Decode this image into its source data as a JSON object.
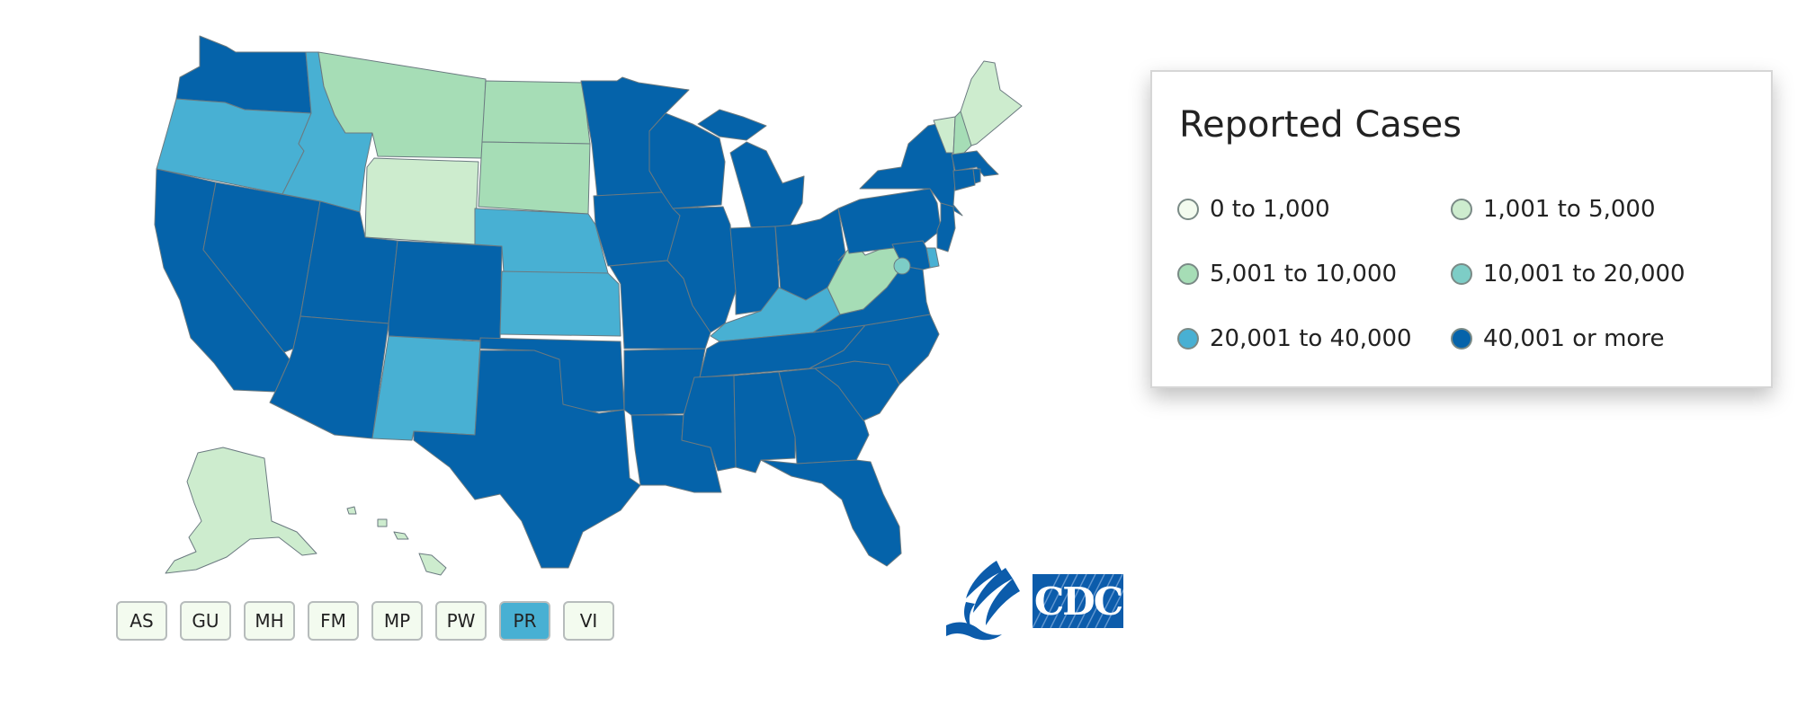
{
  "colors": {
    "bin_0_1000": "#f3fbef",
    "bin_1001_5000": "#cdecce",
    "bin_5001_10000": "#a6ddb6",
    "bin_10001_20000": "#7dcdc6",
    "bin_20001_40000": "#48b0d3",
    "bin_40001_plus": "#0563aa"
  },
  "legend": {
    "title": "Reported Cases",
    "items": [
      {
        "label": "0 to 1,000",
        "color": "#f3fbef"
      },
      {
        "label": "1,001 to 5,000",
        "color": "#cdecce"
      },
      {
        "label": "5,001 to 10,000",
        "color": "#a6ddb6"
      },
      {
        "label": "10,001 to 20,000",
        "color": "#7dcdc6"
      },
      {
        "label": "20,001 to 40,000",
        "color": "#48b0d3"
      },
      {
        "label": "40,001 or more",
        "color": "#0563aa"
      }
    ]
  },
  "territories": [
    {
      "label": "AS",
      "color": "#f3fbef"
    },
    {
      "label": "GU",
      "color": "#f3fbef"
    },
    {
      "label": "MH",
      "color": "#f3fbef"
    },
    {
      "label": "FM",
      "color": "#f3fbef"
    },
    {
      "label": "MP",
      "color": "#f3fbef"
    },
    {
      "label": "PW",
      "color": "#f3fbef"
    },
    {
      "label": "PR",
      "color": "#48b0d3"
    },
    {
      "label": "VI",
      "color": "#f3fbef"
    }
  ],
  "logos": {
    "cdc_text": "CDC",
    "hhs_icon": "hhs-eagle-icon"
  },
  "states": {
    "WA": "#0563aa",
    "OR": "#48b0d3",
    "CA": "#0563aa",
    "NV": "#0563aa",
    "ID": "#48b0d3",
    "MT": "#a6ddb6",
    "WY": "#cdecce",
    "UT": "#0563aa",
    "AZ": "#0563aa",
    "CO": "#0563aa",
    "NM": "#48b0d3",
    "ND": "#a6ddb6",
    "SD": "#a6ddb6",
    "NE": "#48b0d3",
    "KS": "#48b0d3",
    "OK": "#0563aa",
    "TX": "#0563aa",
    "MN": "#0563aa",
    "IA": "#0563aa",
    "MO": "#0563aa",
    "AR": "#0563aa",
    "LA": "#0563aa",
    "WI": "#0563aa",
    "IL": "#0563aa",
    "MI": "#0563aa",
    "IN": "#0563aa",
    "OH": "#0563aa",
    "KY": "#48b0d3",
    "TN": "#0563aa",
    "MS": "#0563aa",
    "AL": "#0563aa",
    "GA": "#0563aa",
    "FL": "#0563aa",
    "SC": "#0563aa",
    "NC": "#0563aa",
    "VA": "#0563aa",
    "WV": "#a6ddb6",
    "PA": "#0563aa",
    "NY": "#0563aa",
    "VT": "#cdecce",
    "NH": "#a6ddb6",
    "ME": "#cdecce",
    "MA": "#0563aa",
    "CT": "#0563aa",
    "RI": "#0563aa",
    "NJ": "#0563aa",
    "DE": "#48b0d3",
    "MD": "#0563aa",
    "DC": "#7dcdc6",
    "AK": "#cdecce",
    "HI": "#cdecce"
  }
}
